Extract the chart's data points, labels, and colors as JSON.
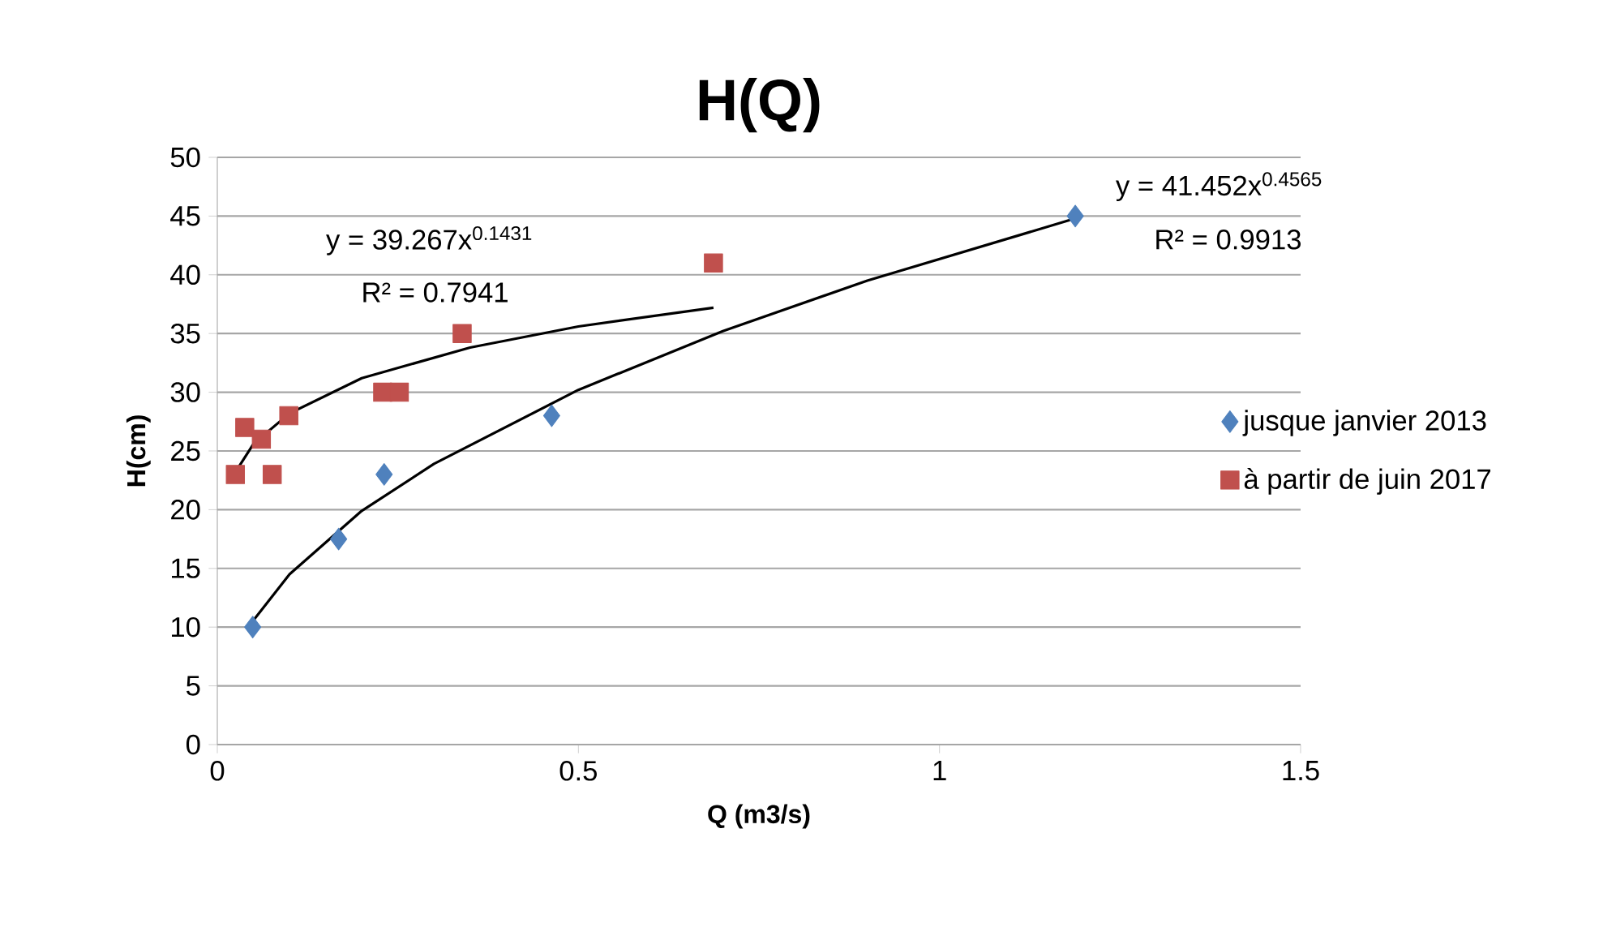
{
  "chart_data": {
    "type": "scatter",
    "title": "H(Q)",
    "xlabel": "Q (m3/s)",
    "ylabel": "H(cm)",
    "xlim": [
      0,
      1.5
    ],
    "ylim": [
      0,
      50
    ],
    "xticks": [
      0,
      0.5,
      1,
      1.5
    ],
    "yticks": [
      0,
      5,
      10,
      15,
      20,
      25,
      30,
      35,
      40,
      45,
      50
    ],
    "grid": "y",
    "legend": "right",
    "series": [
      {
        "name": "jusque janvier 2013",
        "color": "#4f81bd",
        "marker": "diamond",
        "x": [
          0.049,
          0.168,
          0.231,
          0.463,
          1.188
        ],
        "values": [
          10,
          17.5,
          23,
          28,
          45
        ]
      },
      {
        "name": "à partir de juin 2017",
        "color": "#c0504d",
        "marker": "square",
        "x": [
          0.025,
          0.038,
          0.061,
          0.076,
          0.099,
          0.229,
          0.252,
          0.339,
          0.687
        ],
        "values": [
          23,
          27,
          26,
          23,
          28,
          30,
          30,
          35,
          41
        ]
      },
      {
        "type": "line",
        "color": "#000000",
        "marker": "none",
        "x": [
          0.049,
          0.1,
          0.2,
          0.3,
          0.5,
          0.7,
          0.9,
          1.188
        ],
        "values": [
          10.5,
          14.5,
          19.9,
          23.9,
          30.2,
          35.2,
          39.5,
          44.8
        ]
      },
      {
        "type": "line",
        "color": "#000000",
        "marker": "none",
        "x": [
          0.025,
          0.05,
          0.1,
          0.2,
          0.35,
          0.5,
          0.687
        ],
        "values": [
          23.2,
          25.6,
          28.2,
          31.2,
          33.8,
          35.6,
          37.2
        ]
      }
    ],
    "annotations": [
      "y = 39.267x$^{0.1431}$",
      "R² = 0.7941",
      "y = 41.452x$^{0.4565}$",
      "R² = 0.9913"
    ]
  }
}
